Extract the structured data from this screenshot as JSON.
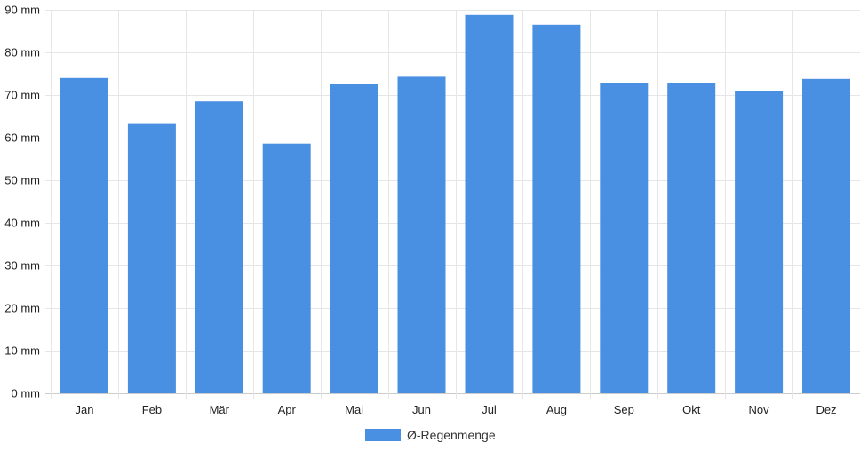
{
  "chart_data": {
    "type": "bar",
    "categories": [
      "Jan",
      "Feb",
      "Mär",
      "Apr",
      "Mai",
      "Jun",
      "Jul",
      "Aug",
      "Sep",
      "Okt",
      "Nov",
      "Dez"
    ],
    "series": [
      {
        "name": "Ø-Regenmenge",
        "color": "#4a90e2",
        "values": [
          74,
          63.2,
          68.5,
          58.6,
          72.5,
          74.3,
          88.8,
          86.5,
          72.8,
          72.8,
          70.9,
          73.8
        ]
      }
    ],
    "y_ticks": [
      "0 mm",
      "10 mm",
      "20 mm",
      "30 mm",
      "40 mm",
      "50 mm",
      "60 mm",
      "70 mm",
      "80 mm",
      "90 mm"
    ],
    "ylim": [
      0,
      90
    ],
    "y_unit": "mm",
    "grid": true,
    "legend_position": "bottom-center"
  }
}
